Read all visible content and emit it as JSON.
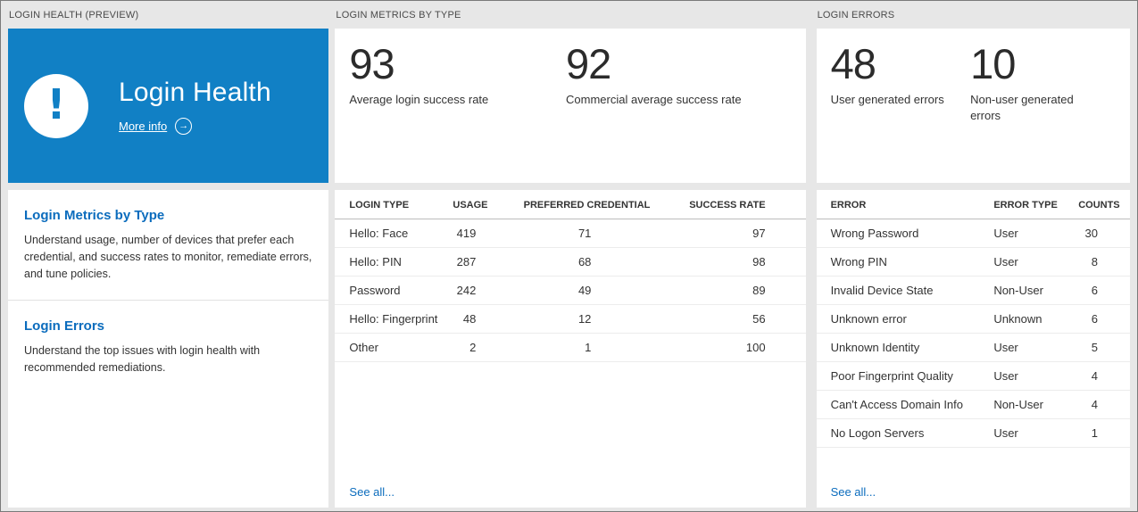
{
  "colors": {
    "accent": "#0b6cbd",
    "tile_blue": "#1180c5"
  },
  "health": {
    "header": "LOGIN HEALTH (PREVIEW)",
    "tile": {
      "title": "Login Health",
      "more_info_label": "More info",
      "alert_glyph": "!",
      "arrow_glyph": "→"
    },
    "sections": [
      {
        "title": "Login Metrics by Type",
        "description": "Understand usage, number of devices that prefer each credential, and success rates to monitor, remediate errors, and tune policies."
      },
      {
        "title": "Login Errors",
        "description": "Understand the top issues with login health with recommended remediations."
      }
    ]
  },
  "metrics": {
    "header": "LOGIN METRICS BY TYPE",
    "stats": [
      {
        "value": "93",
        "label": "Average login success rate"
      },
      {
        "value": "92",
        "label": "Commercial average success rate"
      }
    ],
    "table": {
      "columns": [
        "LOGIN TYPE",
        "USAGE",
        "PREFERRED CREDENTIAL",
        "SUCCESS RATE"
      ],
      "rows": [
        [
          "Hello: Face",
          "419",
          "71",
          "97"
        ],
        [
          "Hello: PIN",
          "287",
          "68",
          "98"
        ],
        [
          "Password",
          "242",
          "49",
          "89"
        ],
        [
          "Hello: Fingerprint",
          "48",
          "12",
          "56"
        ],
        [
          "Other",
          "2",
          "1",
          "100"
        ]
      ]
    },
    "see_all": "See all..."
  },
  "errors": {
    "header": "LOGIN ERRORS",
    "stats": [
      {
        "value": "48",
        "label": "User generated errors"
      },
      {
        "value": "10",
        "label": "Non-user generated errors"
      }
    ],
    "table": {
      "columns": [
        "ERROR",
        "ERROR TYPE",
        "COUNTS"
      ],
      "rows": [
        [
          "Wrong Password",
          "User",
          "30"
        ],
        [
          "Wrong PIN",
          "User",
          "8"
        ],
        [
          "Invalid Device State",
          "Non-User",
          "6"
        ],
        [
          "Unknown error",
          "Unknown",
          "6"
        ],
        [
          "Unknown Identity",
          "User",
          "5"
        ],
        [
          "Poor Fingerprint Quality",
          "User",
          "4"
        ],
        [
          "Can't Access Domain Info",
          "Non-User",
          "4"
        ],
        [
          "No Logon Servers",
          "User",
          "1"
        ]
      ]
    },
    "see_all": "See all..."
  }
}
